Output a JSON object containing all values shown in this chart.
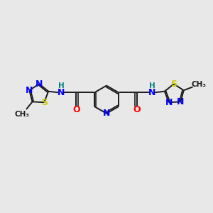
{
  "background_color": "#e8e8e8",
  "bond_color": "#1a1a1a",
  "n_color": "#0000ff",
  "o_color": "#ff0000",
  "s_color": "#cccc00",
  "h_color": "#008080",
  "c_color": "#1a1a1a",
  "figsize": [
    3.0,
    3.0
  ],
  "dpi": 100,
  "xlim": [
    -7.5,
    7.5
  ],
  "ylim": [
    -4.5,
    4.5
  ]
}
